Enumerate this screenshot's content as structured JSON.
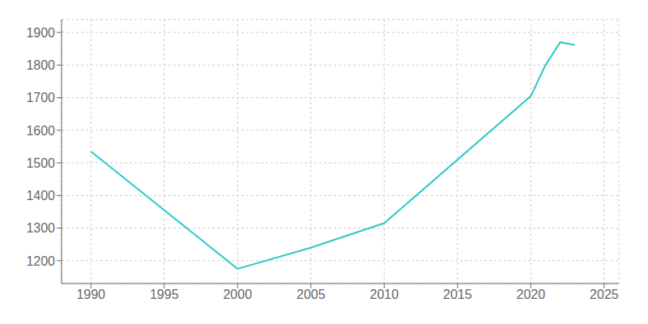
{
  "chart_data": {
    "type": "line",
    "x": [
      1990,
      2000,
      2005,
      2010,
      2020,
      2021,
      2022,
      2023
    ],
    "values": [
      1535,
      1175,
      1240,
      1315,
      1705,
      1800,
      1870,
      1862
    ],
    "color": "#2ec8c8",
    "xlim": [
      1988,
      2026
    ],
    "ylim": [
      1130,
      1940
    ],
    "xticks": [
      1990,
      1995,
      2000,
      2005,
      2010,
      2015,
      2020,
      2025
    ],
    "yticks": [
      1200,
      1300,
      1400,
      1500,
      1600,
      1700,
      1800,
      1900
    ],
    "grid": true
  }
}
